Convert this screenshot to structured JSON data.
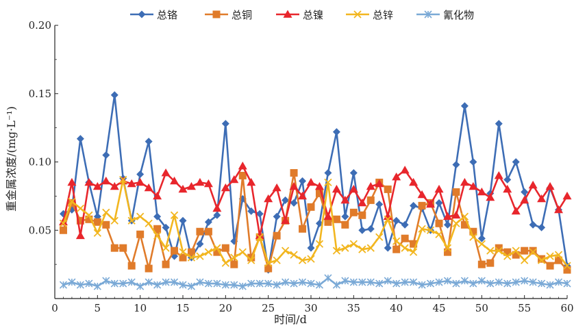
{
  "chart_data": {
    "type": "line",
    "xlabel": "时间/d",
    "ylabel": "重金属浓度/(mg·L⁻¹)",
    "xlim": [
      0,
      60
    ],
    "ylim": [
      0,
      0.2
    ],
    "x_ticks": [
      "0",
      "5",
      "10",
      "15",
      "20",
      "25",
      "30",
      "35",
      "40",
      "45",
      "50",
      "55",
      "60"
    ],
    "y_ticks": [
      "0.05",
      "0.10",
      "0.15",
      "0.20"
    ],
    "grid": false,
    "legend_position": "top",
    "x": [
      1,
      2,
      3,
      4,
      5,
      6,
      7,
      8,
      9,
      10,
      11,
      12,
      13,
      14,
      15,
      16,
      17,
      18,
      19,
      20,
      21,
      22,
      23,
      24,
      25,
      26,
      27,
      28,
      29,
      30,
      31,
      32,
      33,
      34,
      35,
      36,
      37,
      38,
      39,
      40,
      41,
      42,
      43,
      44,
      45,
      46,
      47,
      48,
      49,
      50,
      51,
      52,
      53,
      54,
      55,
      56,
      57,
      58,
      59,
      60
    ],
    "series": [
      {
        "name": "总铬",
        "color": "#3d6db5",
        "marker": "diamond",
        "values": [
          0.062,
          0.065,
          0.117,
          0.085,
          0.06,
          0.105,
          0.149,
          0.088,
          0.057,
          0.091,
          0.115,
          0.06,
          0.052,
          0.031,
          0.057,
          0.03,
          0.04,
          0.056,
          0.061,
          0.128,
          0.042,
          0.073,
          0.064,
          0.062,
          0.021,
          0.06,
          0.072,
          0.07,
          0.086,
          0.037,
          0.055,
          0.092,
          0.122,
          0.06,
          0.092,
          0.05,
          0.051,
          0.069,
          0.037,
          0.057,
          0.054,
          0.068,
          0.066,
          0.05,
          0.07,
          0.054,
          0.098,
          0.141,
          0.1,
          0.044,
          0.077,
          0.128,
          0.087,
          0.1,
          0.078,
          0.054,
          0.052,
          0.081,
          0.065,
          0.024
        ]
      },
      {
        "name": "总铜",
        "color": "#e07b2a",
        "marker": "square",
        "values": [
          0.05,
          0.07,
          0.057,
          0.058,
          0.056,
          0.054,
          0.037,
          0.037,
          0.024,
          0.047,
          0.022,
          0.051,
          0.025,
          0.035,
          0.03,
          0.034,
          0.049,
          0.049,
          0.034,
          0.037,
          0.025,
          0.09,
          0.03,
          0.045,
          0.022,
          0.046,
          0.057,
          0.092,
          0.051,
          0.067,
          0.077,
          0.056,
          0.058,
          0.054,
          0.063,
          0.061,
          0.072,
          0.085,
          0.08,
          0.036,
          0.044,
          0.04,
          0.068,
          0.07,
          0.055,
          0.034,
          0.078,
          0.054,
          0.049,
          0.025,
          0.026,
          0.037,
          0.034,
          0.032,
          0.035,
          0.035,
          0.029,
          0.024,
          0.028,
          0.021
        ]
      },
      {
        "name": "总镍",
        "color": "#e8262c",
        "marker": "triangle",
        "values": [
          0.056,
          0.085,
          0.046,
          0.085,
          0.082,
          0.086,
          0.082,
          0.086,
          0.084,
          0.085,
          0.081,
          0.075,
          0.092,
          0.086,
          0.08,
          0.082,
          0.085,
          0.084,
          0.066,
          0.081,
          0.087,
          0.097,
          0.085,
          0.046,
          0.073,
          0.081,
          0.057,
          0.082,
          0.075,
          0.085,
          0.082,
          0.06,
          0.08,
          0.072,
          0.08,
          0.07,
          0.082,
          0.084,
          0.06,
          0.089,
          0.094,
          0.085,
          0.076,
          0.069,
          0.08,
          0.06,
          0.061,
          0.085,
          0.082,
          0.078,
          0.074,
          0.09,
          0.08,
          0.064,
          0.072,
          0.083,
          0.073,
          0.082,
          0.065,
          0.075
        ]
      },
      {
        "name": "总锌",
        "color": "#f2b61f",
        "marker": "x",
        "values": [
          0.055,
          0.071,
          0.066,
          0.061,
          0.048,
          0.063,
          0.057,
          0.087,
          0.057,
          0.06,
          0.055,
          0.046,
          0.037,
          0.061,
          0.034,
          0.03,
          0.031,
          0.034,
          0.037,
          0.026,
          0.03,
          0.034,
          0.028,
          0.045,
          0.026,
          0.028,
          0.035,
          0.032,
          0.028,
          0.029,
          0.04,
          0.085,
          0.035,
          0.037,
          0.04,
          0.036,
          0.037,
          0.045,
          0.058,
          0.042,
          0.037,
          0.034,
          0.051,
          0.05,
          0.047,
          0.037,
          0.055,
          0.06,
          0.045,
          0.04,
          0.035,
          0.035,
          0.031,
          0.035,
          0.028,
          0.034,
          0.028,
          0.031,
          0.032,
          0.024
        ]
      },
      {
        "name": "氰化物",
        "color": "#7aa9d6",
        "marker": "asterisk",
        "values": [
          0.01,
          0.012,
          0.01,
          0.011,
          0.009,
          0.013,
          0.011,
          0.011,
          0.012,
          0.009,
          0.012,
          0.01,
          0.012,
          0.012,
          0.01,
          0.009,
          0.012,
          0.011,
          0.011,
          0.01,
          0.01,
          0.009,
          0.011,
          0.011,
          0.011,
          0.01,
          0.012,
          0.011,
          0.012,
          0.011,
          0.01,
          0.015,
          0.01,
          0.013,
          0.012,
          0.012,
          0.012,
          0.011,
          0.013,
          0.011,
          0.012,
          0.012,
          0.01,
          0.011,
          0.012,
          0.013,
          0.011,
          0.013,
          0.011,
          0.013,
          0.011,
          0.012,
          0.011,
          0.012,
          0.013,
          0.012,
          0.011,
          0.01,
          0.012,
          0.011
        ]
      }
    ]
  }
}
